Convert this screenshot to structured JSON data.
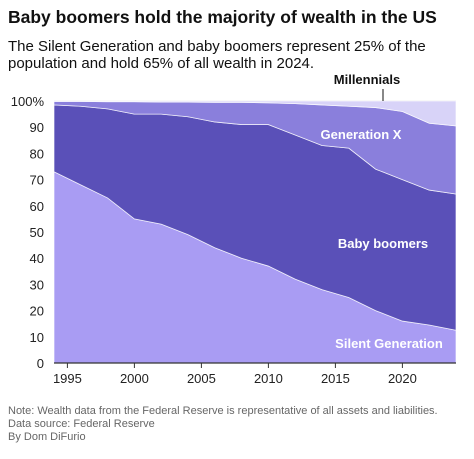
{
  "chart_data": {
    "type": "area",
    "title": "Baby boomers hold the majority of wealth in the US",
    "subtitle": "The Silent Generation and baby boomers represent 25% of the population and hold 65% of all wealth in 2024.",
    "x": [
      1994,
      1996,
      1998,
      2000,
      2002,
      2004,
      2006,
      2008,
      2010,
      2012,
      2014,
      2016,
      2018,
      2020,
      2022,
      2024
    ],
    "series": [
      {
        "name": "Silent Generation",
        "color": "#a99cf3",
        "values": [
          73,
          68,
          63,
          55,
          53,
          49,
          44,
          40,
          37,
          32,
          28,
          25,
          20,
          16,
          14.5,
          12.5
        ]
      },
      {
        "name": "Baby boomers",
        "color": "#5a50b8",
        "values": [
          25.5,
          30,
          34,
          40,
          42,
          45,
          48,
          51,
          54,
          55,
          55,
          57,
          54,
          54,
          51.5,
          52
        ]
      },
      {
        "name": "Generation X",
        "color": "#8a7fdc",
        "values": [
          1.3,
          1.8,
          2.7,
          4.7,
          4.6,
          5.6,
          7.5,
          8.5,
          8.3,
          12,
          15.5,
          16,
          23.5,
          26,
          25.5,
          26
        ]
      },
      {
        "name": "Millennials",
        "color": "#d8d3f8",
        "values": [
          0.2,
          0.2,
          0.3,
          0.3,
          0.4,
          0.4,
          0.5,
          0.5,
          0.7,
          1,
          1.5,
          2,
          2.5,
          4,
          8.5,
          9.5
        ]
      }
    ],
    "xlim": [
      1994,
      2024
    ],
    "xticks": [
      1995,
      2000,
      2005,
      2010,
      2015,
      2020
    ],
    "ylim": [
      0,
      100
    ],
    "yticks": [
      0,
      10,
      20,
      30,
      40,
      50,
      60,
      70,
      80,
      90,
      {
        "value": 100,
        "label": "100%"
      }
    ],
    "grid": true,
    "notes": [
      "Note: Wealth data from the Federal Reserve is representative of all assets and liabilities.",
      "Data source: Federal Reserve",
      "By Dom DiFurio"
    ]
  }
}
